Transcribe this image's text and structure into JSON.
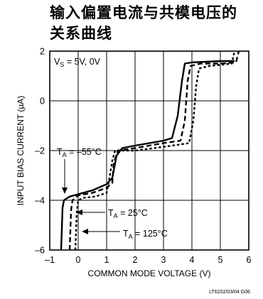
{
  "chart_data": {
    "type": "line",
    "title_lines": [
      "输入偏置电流与共模电压的",
      "关系曲线"
    ],
    "xlabel": "COMMON MODE VOLTAGE (V)",
    "ylabel": "INPUT BIAS CURRENT (µA)",
    "xlim": [
      -1,
      6
    ],
    "ylim": [
      -6,
      2
    ],
    "x_ticks": [
      -1,
      0,
      1,
      2,
      3,
      4,
      5,
      6
    ],
    "y_ticks": [
      -6,
      -4,
      -2,
      0,
      2
    ],
    "grid": true,
    "condition": {
      "lead": "V",
      "sub": "S",
      "rest": " = 5V, 0V"
    },
    "series": [
      {
        "name": "T_A = -55°C",
        "label_lead": "T",
        "label_sub": "A",
        "label_rest": " = –55°C",
        "style": "solid",
        "points": [
          [
            -0.6,
            -6.0
          ],
          [
            -0.55,
            -4.3
          ],
          [
            -0.5,
            -4.0
          ],
          [
            -0.3,
            -3.85
          ],
          [
            0.5,
            -3.6
          ],
          [
            1.0,
            -3.35
          ],
          [
            1.2,
            -3.1
          ],
          [
            1.35,
            -2.2
          ],
          [
            1.55,
            -1.9
          ],
          [
            2.0,
            -1.8
          ],
          [
            3.0,
            -1.6
          ],
          [
            3.3,
            -1.5
          ],
          [
            3.5,
            -0.6
          ],
          [
            3.65,
            0.8
          ],
          [
            3.75,
            1.5
          ],
          [
            4.0,
            1.55
          ],
          [
            5.0,
            1.6
          ],
          [
            5.5,
            1.6
          ]
        ]
      },
      {
        "name": "T_A = 25°C",
        "label_lead": "T",
        "label_sub": "A",
        "label_rest": " = 25°C",
        "style": "dashed",
        "points": [
          [
            -0.3,
            -6.0
          ],
          [
            -0.25,
            -4.4
          ],
          [
            -0.2,
            -4.0
          ],
          [
            0.0,
            -3.8
          ],
          [
            0.5,
            -3.7
          ],
          [
            1.0,
            -3.5
          ],
          [
            1.2,
            -3.3
          ],
          [
            1.25,
            -2.5
          ],
          [
            1.4,
            -2.0
          ],
          [
            2.0,
            -1.9
          ],
          [
            3.0,
            -1.7
          ],
          [
            3.6,
            -1.6
          ],
          [
            3.75,
            -0.8
          ],
          [
            3.85,
            0.8
          ],
          [
            3.95,
            1.4
          ],
          [
            4.3,
            1.5
          ],
          [
            5.0,
            1.5
          ],
          [
            5.55,
            1.55
          ],
          [
            5.65,
            2.0
          ]
        ]
      },
      {
        "name": "T_A = 125°C",
        "label_lead": "T",
        "label_sub": "A",
        "label_rest": " = 125°C",
        "style": "short-dashed",
        "points": [
          [
            -0.1,
            -6.0
          ],
          [
            -0.05,
            -4.5
          ],
          [
            0.0,
            -4.0
          ],
          [
            0.2,
            -3.9
          ],
          [
            0.6,
            -3.85
          ],
          [
            1.0,
            -3.7
          ],
          [
            1.1,
            -3.1
          ],
          [
            1.2,
            -2.4
          ],
          [
            1.3,
            -2.0
          ],
          [
            2.0,
            -2.0
          ],
          [
            3.0,
            -1.85
          ],
          [
            3.9,
            -1.7
          ],
          [
            4.05,
            -0.8
          ],
          [
            4.15,
            0.6
          ],
          [
            4.25,
            1.3
          ],
          [
            4.6,
            1.4
          ],
          [
            5.0,
            1.45
          ],
          [
            5.4,
            1.5
          ],
          [
            5.5,
            2.0
          ]
        ]
      }
    ],
    "figure_code": "LT6202/03/04 G06"
  }
}
